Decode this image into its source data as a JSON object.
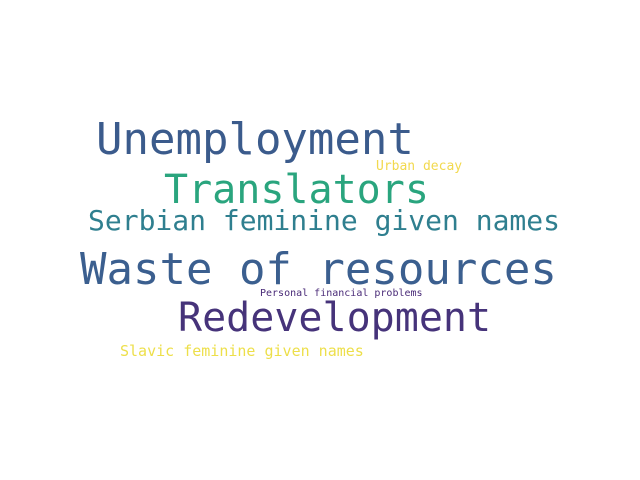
{
  "words": [
    {
      "text": "Unemployment",
      "color": "#3b5b8c"
    },
    {
      "text": "Urban decay",
      "color": "#f2d94e"
    },
    {
      "text": "Translators",
      "color": "#2aa57e"
    },
    {
      "text": "Serbian feminine given names",
      "color": "#2f7f8f"
    },
    {
      "text": "Waste of resources",
      "color": "#3b5f8f"
    },
    {
      "text": "Personal financial problems",
      "color": "#4a2b78"
    },
    {
      "text": "Redevelopment",
      "color": "#46337a"
    },
    {
      "text": "Slavic feminine given names",
      "color": "#eddf4a"
    }
  ]
}
